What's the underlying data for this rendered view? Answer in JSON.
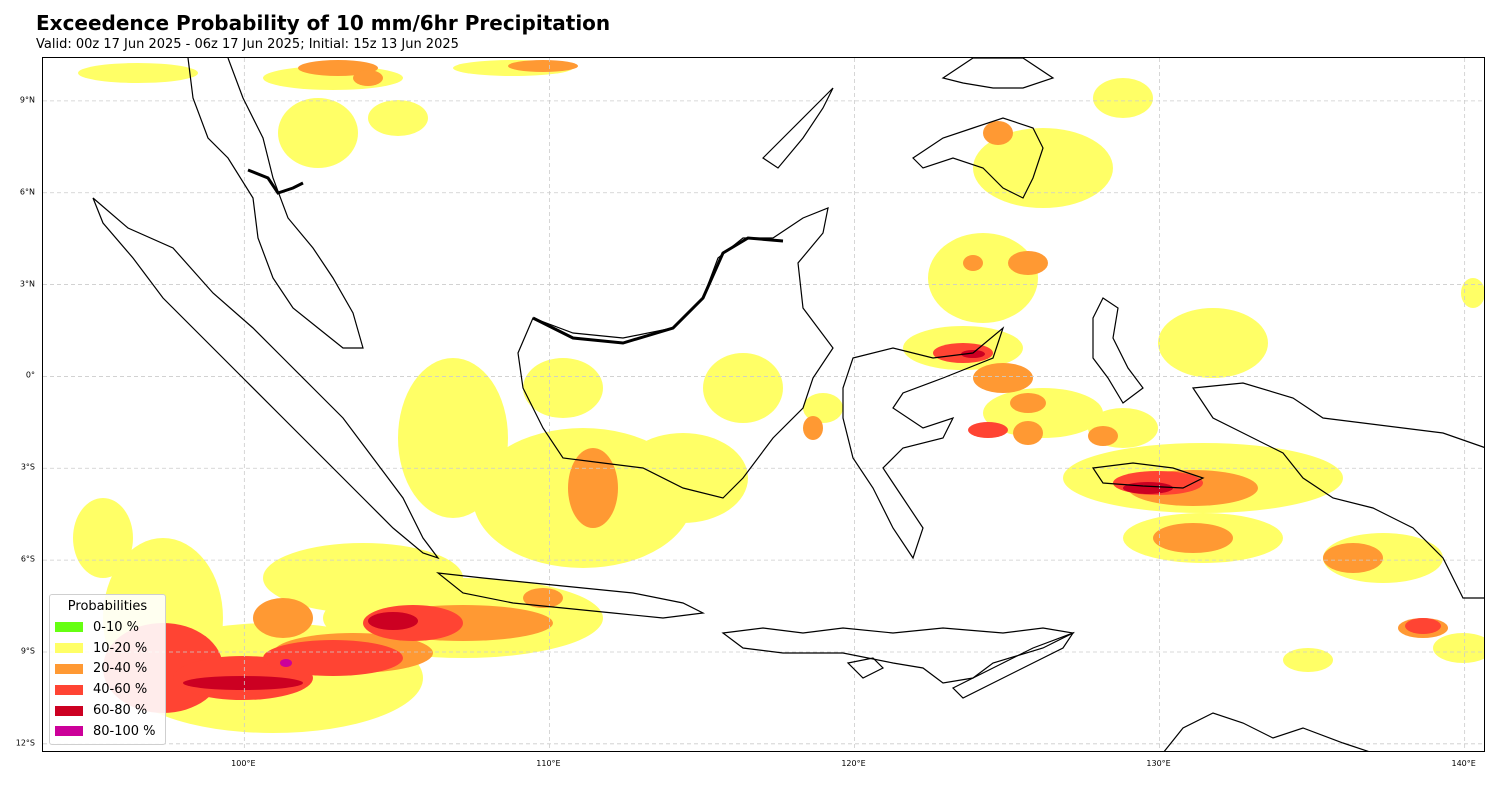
{
  "title": "Exceedence Probability of 10 mm/6hr Precipitation",
  "subtitle": "Valid: 00z 17 Jun 2025 - 06z 17 Jun 2025; Initial: 15z 13 Jun 2025",
  "map": {
    "lon_range": [
      93.4,
      140.7
    ],
    "lat_range": [
      -12.3,
      10.4
    ],
    "gridlines": true,
    "lat_ticks": [
      {
        "value": 9,
        "label": "9°N"
      },
      {
        "value": 6,
        "label": "6°N"
      },
      {
        "value": 3,
        "label": "3°N"
      },
      {
        "value": 0,
        "label": "0°"
      },
      {
        "value": -3,
        "label": "3°S"
      },
      {
        "value": -6,
        "label": "6°S"
      },
      {
        "value": -9,
        "label": "9°S"
      },
      {
        "value": -12,
        "label": "12°S"
      }
    ],
    "lon_ticks": [
      {
        "value": 100,
        "label": "100°E"
      },
      {
        "value": 110,
        "label": "110°E"
      },
      {
        "value": 120,
        "label": "120°E"
      },
      {
        "value": 130,
        "label": "130°E"
      },
      {
        "value": 140,
        "label": "140°E"
      }
    ]
  },
  "legend": {
    "title": "Probabilities",
    "placement": "lower-left",
    "items": [
      {
        "label": "0-10 %",
        "color": "#66ff11"
      },
      {
        "label": "10-20 %",
        "color": "#ffff66"
      },
      {
        "label": "20-40 %",
        "color": "#ff9933"
      },
      {
        "label": "40-60 %",
        "color": "#ff4433"
      },
      {
        "label": "60-80 %",
        "color": "#cc0022"
      },
      {
        "label": "80-100 %",
        "color": "#cc0099"
      }
    ]
  },
  "colors": {
    "land_outline": "#000000",
    "gridline": "#cccccc"
  }
}
